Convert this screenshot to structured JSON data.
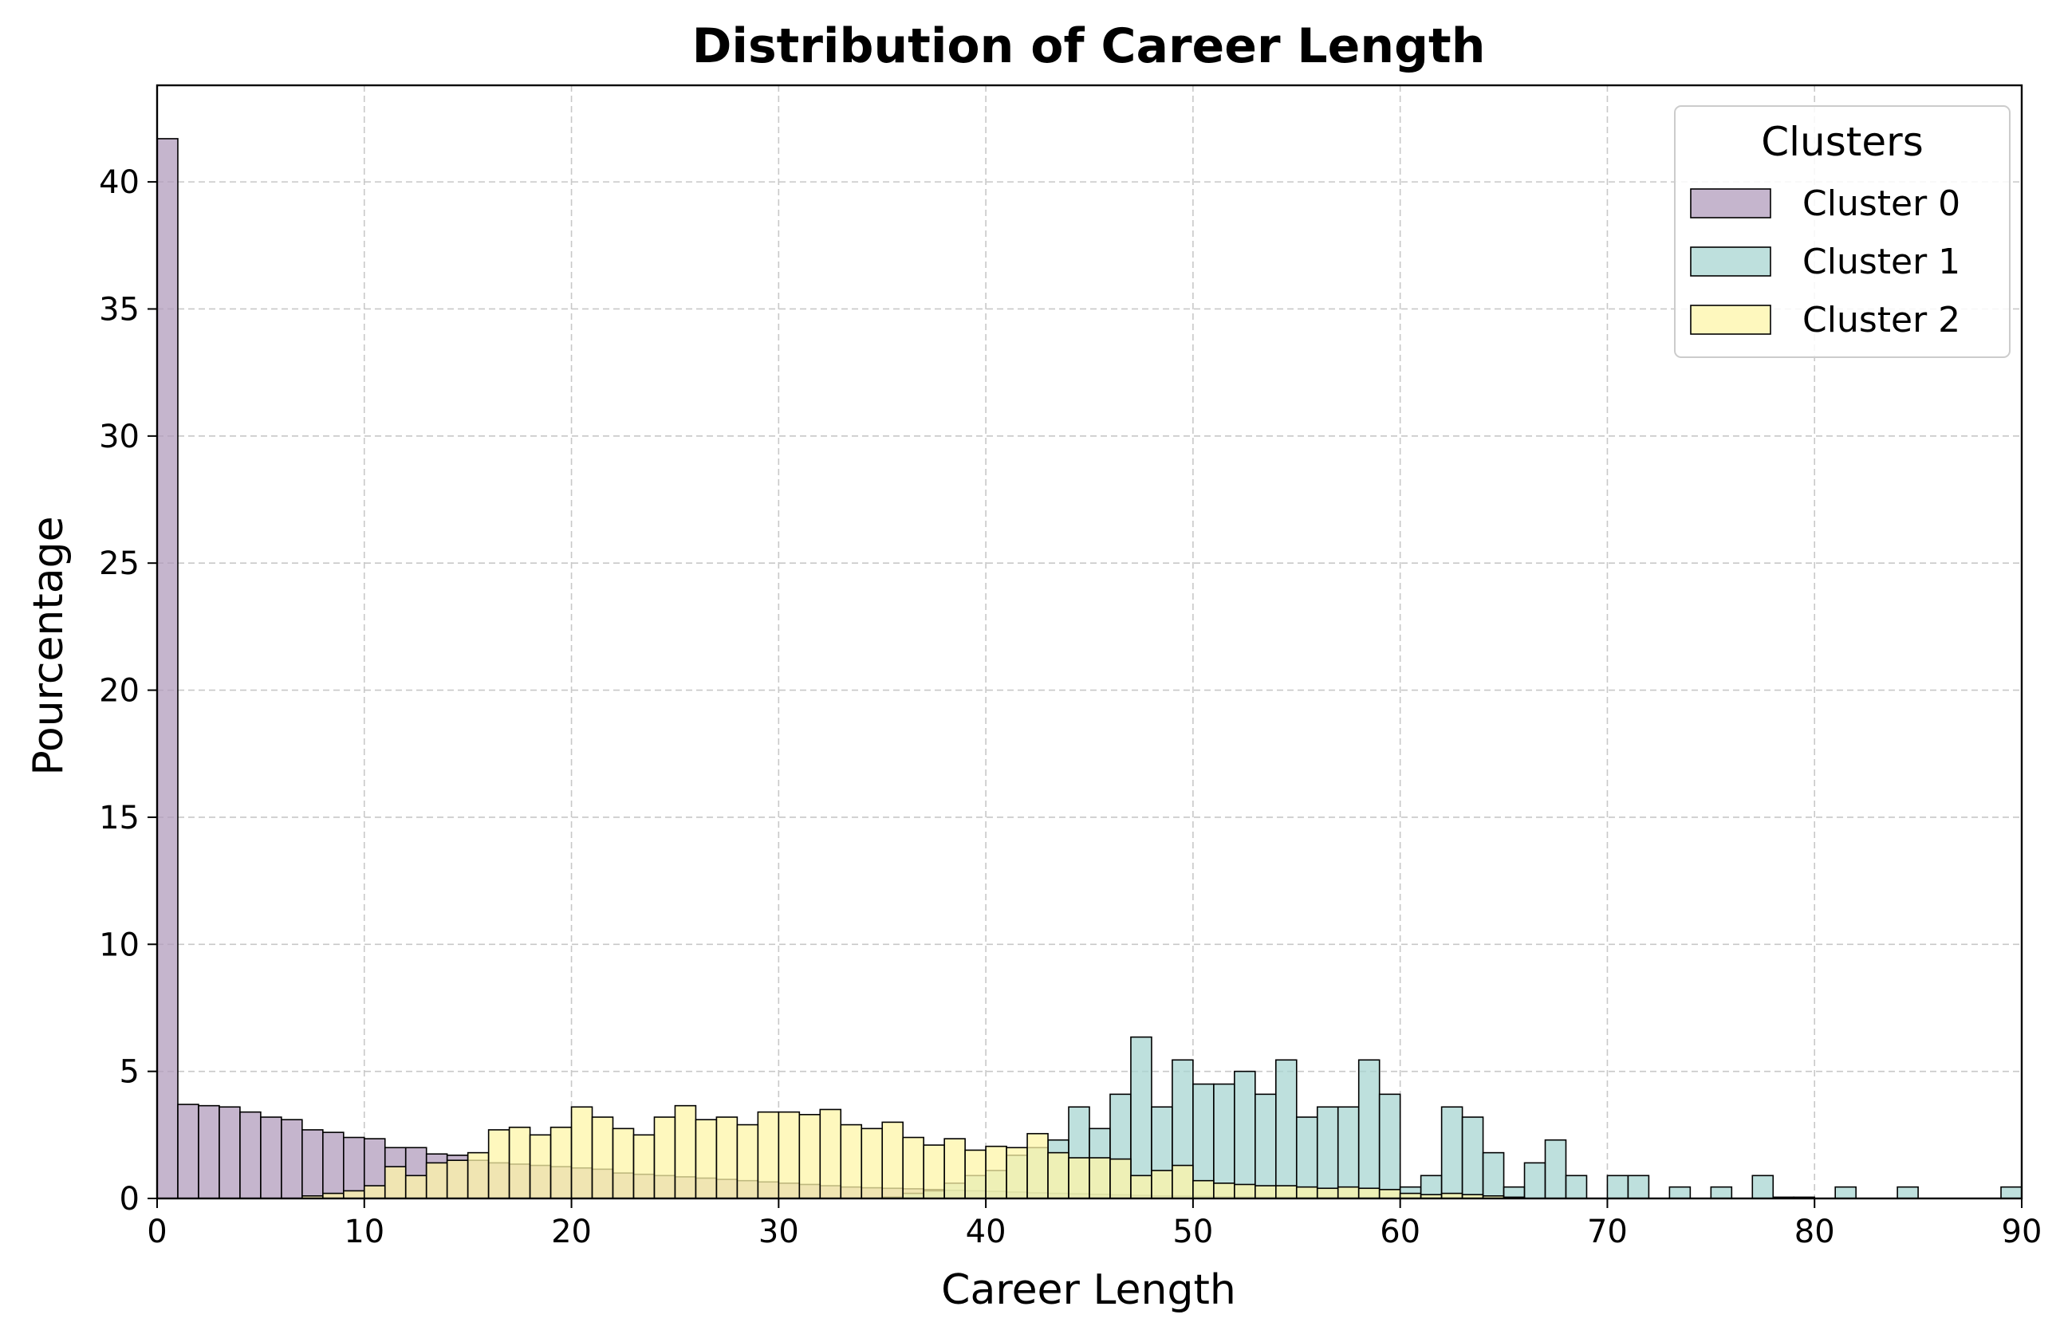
{
  "chart_data": {
    "type": "bar",
    "subtype": "overlapping-histogram",
    "title": "Distribution of Career Length",
    "xlabel": "Career Length",
    "ylabel": "Pourcentage",
    "xlim": [
      0,
      90
    ],
    "ylim": [
      0,
      43.8
    ],
    "xticks": [
      0,
      10,
      20,
      30,
      40,
      50,
      60,
      70,
      80,
      90
    ],
    "yticks": [
      0,
      5,
      10,
      15,
      20,
      25,
      30,
      35,
      40
    ],
    "grid": true,
    "bin_width": 1,
    "legend": {
      "title": "Clusters",
      "position": "top-right"
    },
    "series": [
      {
        "name": "Cluster 0",
        "color": "#b19cbc",
        "values": [
          41.7,
          3.7,
          3.65,
          3.6,
          3.4,
          3.2,
          3.1,
          2.7,
          2.6,
          2.4,
          2.35,
          2.0,
          2.0,
          1.75,
          1.7,
          1.5,
          1.4,
          1.35,
          1.3,
          1.25,
          1.2,
          1.15,
          1.0,
          0.95,
          0.9,
          0.85,
          0.8,
          0.75,
          0.7,
          0.65,
          0.6,
          0.55,
          0.5,
          0.45,
          0.42,
          0.4,
          0.38,
          0.35,
          0.32,
          0.3,
          0.28,
          0.25,
          0.22,
          0.2,
          0.18,
          0.16,
          0.14,
          0.12,
          0.1,
          0.09,
          0.08,
          0.07,
          0.06,
          0.05,
          0.05,
          0.04,
          0.04,
          0.03,
          0.03,
          0.02,
          0.02,
          0.02,
          0.01,
          0.01,
          0.01,
          0,
          0,
          0,
          0,
          0,
          0,
          0,
          0,
          0,
          0,
          0,
          0,
          0,
          0,
          0,
          0,
          0,
          0,
          0,
          0,
          0,
          0,
          0,
          0,
          0
        ]
      },
      {
        "name": "Cluster 1",
        "color": "#a8d5d1",
        "values": [
          0,
          0,
          0,
          0,
          0,
          0,
          0,
          0,
          0,
          0,
          0,
          0,
          0,
          0,
          0,
          0,
          0,
          0,
          0,
          0,
          0,
          0,
          0,
          0,
          0,
          0,
          0,
          0,
          0,
          0,
          0,
          0,
          0,
          0,
          0,
          0.05,
          0.2,
          0.3,
          0.6,
          0.9,
          1.1,
          1.7,
          2.0,
          2.3,
          3.6,
          2.75,
          4.1,
          6.35,
          3.6,
          5.45,
          4.5,
          4.5,
          5.0,
          4.1,
          5.45,
          3.2,
          3.6,
          3.6,
          5.45,
          4.1,
          0.45,
          0.9,
          3.6,
          3.2,
          1.8,
          0.45,
          1.4,
          2.3,
          0.9,
          0,
          0.9,
          0.9,
          0,
          0.45,
          0,
          0.45,
          0,
          0.9,
          0.05,
          0.05,
          0,
          0.45,
          0,
          0,
          0.45,
          0,
          0,
          0,
          0,
          0.45
        ]
      },
      {
        "name": "Cluster 2",
        "color": "#fef5a8",
        "values": [
          0,
          0,
          0,
          0,
          0,
          0,
          0,
          0.1,
          0.2,
          0.3,
          0.5,
          1.25,
          0.9,
          1.4,
          1.5,
          1.8,
          2.7,
          2.8,
          2.5,
          2.8,
          3.6,
          3.2,
          2.75,
          2.5,
          3.2,
          3.65,
          3.1,
          3.2,
          2.9,
          3.4,
          3.4,
          3.3,
          3.5,
          2.9,
          2.75,
          3.0,
          2.4,
          2.1,
          2.35,
          1.9,
          2.05,
          2.0,
          2.55,
          1.8,
          1.6,
          1.6,
          1.55,
          0.9,
          1.1,
          1.3,
          0.7,
          0.6,
          0.55,
          0.5,
          0.5,
          0.45,
          0.4,
          0.45,
          0.4,
          0.35,
          0.2,
          0.15,
          0.2,
          0.15,
          0.1,
          0.05,
          0,
          0,
          0,
          0,
          0,
          0,
          0,
          0,
          0,
          0,
          0,
          0,
          0,
          0,
          0,
          0,
          0,
          0,
          0,
          0,
          0,
          0,
          0,
          0
        ]
      }
    ]
  }
}
